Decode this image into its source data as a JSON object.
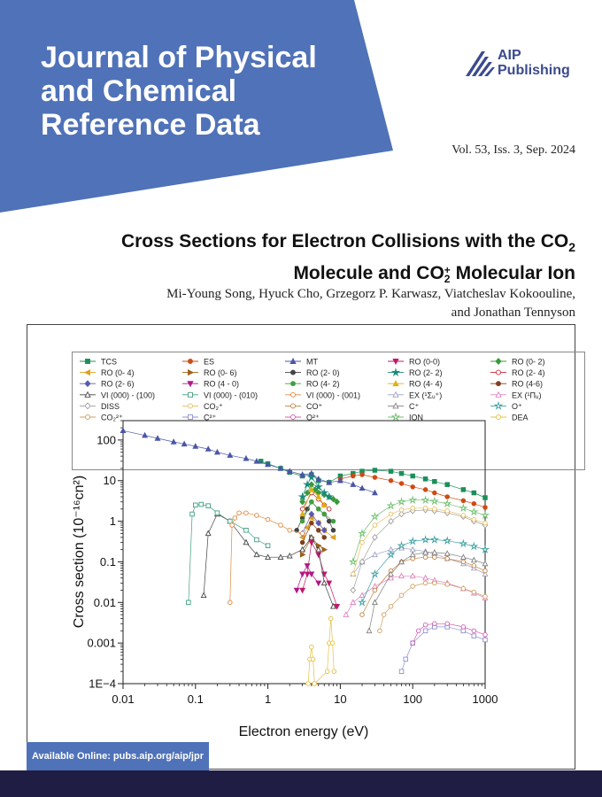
{
  "journal": {
    "title_lines": [
      "Journal of Physical",
      "and Chemical",
      "Reference Data"
    ],
    "publisher_lines": [
      "AIP",
      "Publishing"
    ],
    "issue": "Vol. 53, Iss. 3, Sep. 2024"
  },
  "article": {
    "title_line1": "Cross Sections for Electron Collisions with the CO",
    "title_line1_sub": "2",
    "title_line2_a": "Molecule and CO",
    "title_line2_sup": "+",
    "title_line2_sub": "2",
    "title_line2_b": " Molecular Ion",
    "authors_line1": "Mi-Young Song, Hyuck Cho, Grzegorz P. Karwasz, Viatcheslav Kokoouline,",
    "authors_line2": "and Jonathan Tennyson"
  },
  "availability": "Available Online: pubs.aip.org/aip/jpr",
  "colors": {
    "banner": "#4f72b8",
    "footer": "#1f1d44",
    "logo": "#3b4a8f"
  },
  "chart_data": {
    "type": "scatter",
    "log_x": true,
    "log_y": true,
    "xlim": [
      0.01,
      1000
    ],
    "ylim": [
      0.0001,
      300
    ],
    "xlabel": "Electron energy (eV)",
    "ylabel": "Cross section (10⁻¹⁶cn²)",
    "x_ticks": [
      "0.01",
      "0.1",
      "1",
      "10",
      "100",
      "1000"
    ],
    "y_ticks": [
      "1E−4",
      "0.001",
      "0.01",
      "0.1",
      "1",
      "10",
      "100"
    ],
    "legend_position": "top",
    "series": [
      {
        "name": "TCS",
        "color": "#1a8f5a",
        "marker": "square",
        "x": [
          0.8,
          1,
          1.5,
          2,
          3,
          4,
          5,
          7,
          10,
          15,
          20,
          30,
          50,
          70,
          100,
          150,
          200,
          300,
          500,
          700,
          1000
        ],
        "y": [
          30,
          26,
          20,
          16,
          13,
          14,
          10,
          9,
          13,
          15,
          17,
          18,
          17,
          15,
          13,
          11,
          9.5,
          8,
          6,
          5,
          3.8
        ]
      },
      {
        "name": "ES",
        "color": "#d04a12",
        "marker": "circle",
        "x": [
          10,
          15,
          20,
          30,
          50,
          70,
          100,
          150,
          200,
          300,
          500,
          700,
          1000
        ],
        "y": [
          11,
          13,
          14,
          12,
          10,
          8.5,
          7,
          6,
          5,
          4,
          3.2,
          2.7,
          2.2
        ]
      },
      {
        "name": "MT",
        "color": "#4a56a8",
        "marker": "triangle",
        "x": [
          0.01,
          0.02,
          0.03,
          0.05,
          0.07,
          0.1,
          0.15,
          0.2,
          0.3,
          0.5,
          0.7,
          1,
          1.5,
          2,
          3,
          4,
          5,
          7,
          10,
          15,
          20,
          30
        ],
        "y": [
          170,
          130,
          110,
          90,
          80,
          70,
          60,
          50,
          42,
          35,
          30,
          25,
          20,
          17,
          14,
          15,
          11,
          9,
          10,
          8,
          6.5,
          5
        ]
      },
      {
        "name": "RO (0-0)",
        "color": "#c0186c",
        "marker": "triangle-down",
        "x": [
          3,
          3.5,
          4,
          5,
          6,
          7,
          9
        ],
        "y": [
          0.02,
          0.05,
          0.3,
          0.15,
          0.05,
          0.03,
          0.008
        ]
      },
      {
        "name": "RO (0- 2)",
        "color": "#3a9a3a",
        "marker": "diamond",
        "x": [
          3,
          3.5,
          4,
          4.5,
          5,
          6,
          7,
          8,
          9
        ],
        "y": [
          3,
          5,
          8,
          6,
          5,
          4.5,
          4,
          3.5,
          3
        ]
      },
      {
        "name": "RO (0- 4)",
        "color": "#e0a020",
        "marker": "triangle-left",
        "x": [
          3,
          3.5,
          4,
          5,
          6,
          8
        ],
        "y": [
          0.4,
          0.7,
          1.2,
          0.9,
          0.6,
          0.4
        ]
      },
      {
        "name": "RO (0- 6)",
        "color": "#a0601a",
        "marker": "triangle-right",
        "x": [
          3,
          4,
          5,
          6
        ],
        "y": [
          0.15,
          0.4,
          0.25,
          0.2
        ]
      },
      {
        "name": "RO (2- 0)",
        "color": "#444444",
        "marker": "circle",
        "x": [
          2.5,
          3,
          3.5,
          4,
          5,
          6,
          7,
          8
        ],
        "y": [
          0.6,
          1.2,
          2,
          3,
          2,
          1.5,
          1,
          0.6
        ]
      },
      {
        "name": "RO (2- 2)",
        "color": "#1a8a7a",
        "marker": "star",
        "x": [
          3,
          3.5,
          4,
          5,
          6,
          7
        ],
        "y": [
          4,
          8,
          12,
          7,
          5,
          4
        ]
      },
      {
        "name": "RO (2- 4)",
        "color": "#c8283a",
        "marker": "circle-open",
        "x": [
          3,
          4,
          5,
          6,
          7
        ],
        "y": [
          2,
          5,
          3.5,
          2.5,
          2
        ]
      },
      {
        "name": "RO (2- 6)",
        "color": "#5a5ab0",
        "marker": "diamond",
        "x": [
          3,
          4,
          5,
          6
        ],
        "y": [
          0.5,
          1.5,
          0.9,
          0.6
        ]
      },
      {
        "name": "RO (4 - 0)",
        "color": "#b0188a",
        "marker": "triangle-down",
        "x": [
          2.5,
          3,
          3.5,
          4,
          5
        ],
        "y": [
          0.02,
          0.05,
          0.08,
          0.05,
          0.03
        ]
      },
      {
        "name": "RO (4- 2)",
        "color": "#40a040",
        "marker": "circle",
        "x": [
          3,
          4,
          5,
          6,
          8
        ],
        "y": [
          1,
          3,
          2,
          1.5,
          1
        ]
      },
      {
        "name": "RO (4- 4)",
        "color": "#e0b010",
        "marker": "triangle",
        "x": [
          3,
          4,
          5,
          6
        ],
        "y": [
          1.5,
          6,
          4,
          2.5
        ]
      },
      {
        "name": "RO (4-6)",
        "color": "#804020",
        "marker": "circle",
        "x": [
          3,
          4,
          5,
          6
        ],
        "y": [
          0.3,
          0.9,
          0.6,
          0.4
        ]
      },
      {
        "name": "VI (000) - (100)",
        "color": "#444444",
        "marker": "triangle-open",
        "x": [
          0.13,
          0.15,
          0.2,
          0.3,
          0.5,
          0.7,
          1,
          1.5,
          2,
          3,
          4,
          5,
          6,
          8
        ],
        "y": [
          0.015,
          0.5,
          1.5,
          1,
          0.3,
          0.15,
          0.13,
          0.13,
          0.14,
          0.2,
          0.4,
          0.2,
          0.03,
          0.008
        ]
      },
      {
        "name": "VI (000) - (010)",
        "color": "#40a080",
        "marker": "square-open",
        "x": [
          0.08,
          0.09,
          0.1,
          0.12,
          0.15,
          0.2,
          0.3,
          0.5,
          0.7,
          1
        ],
        "y": [
          0.01,
          1.5,
          2.5,
          2.6,
          2.4,
          1.6,
          1,
          0.6,
          0.35,
          0.25
        ]
      },
      {
        "name": "VI (000) - (001)",
        "color": "#e08a40",
        "marker": "circle-open",
        "x": [
          0.3,
          0.32,
          0.35,
          0.4,
          0.5,
          0.7,
          1,
          1.5,
          2,
          3
        ],
        "y": [
          0.01,
          0.8,
          1.2,
          1.6,
          1.6,
          1.4,
          1.1,
          0.8,
          0.6,
          0.5
        ]
      },
      {
        "name": "EX (¹Σᵤ⁺)",
        "color": "#a0a0c8",
        "marker": "triangle-open",
        "x": [
          15,
          20,
          30,
          50,
          70,
          100,
          150,
          200,
          300,
          500,
          700,
          1000
        ],
        "y": [
          0.05,
          0.1,
          0.15,
          0.2,
          0.22,
          0.2,
          0.18,
          0.16,
          0.12,
          0.09,
          0.07,
          0.05
        ]
      },
      {
        "name": "EX (¹Πᵤ)",
        "color": "#e080c0",
        "marker": "triangle-open",
        "x": [
          12,
          15,
          20,
          30,
          50,
          70,
          100,
          150,
          200,
          300,
          500,
          700,
          1000
        ],
        "y": [
          0.005,
          0.01,
          0.015,
          0.025,
          0.04,
          0.045,
          0.045,
          0.04,
          0.035,
          0.03,
          0.022,
          0.017,
          0.013
        ]
      },
      {
        "name": "DISS",
        "color": "#a0a0a0",
        "marker": "diamond-open",
        "x": [
          15,
          20,
          30,
          50,
          70,
          100,
          150,
          200,
          300,
          500,
          700,
          1000
        ],
        "y": [
          0.02,
          0.1,
          0.4,
          1,
          1.5,
          1.8,
          1.9,
          1.8,
          1.6,
          1.3,
          1,
          0.8
        ]
      },
      {
        "name": "CO₂⁺",
        "color": "#e8c060",
        "marker": "circle-open",
        "x": [
          15,
          20,
          30,
          50,
          70,
          100,
          150,
          200,
          300,
          500,
          700,
          1000
        ],
        "y": [
          0.05,
          0.3,
          0.8,
          1.5,
          1.9,
          2.1,
          2.1,
          2,
          1.8,
          1.4,
          1.1,
          0.9
        ]
      },
      {
        "name": "CO⁺",
        "color": "#c08040",
        "marker": "circle-open",
        "x": [
          20,
          30,
          50,
          70,
          100,
          150,
          200,
          300,
          500,
          700,
          1000
        ],
        "y": [
          0.005,
          0.02,
          0.06,
          0.1,
          0.12,
          0.13,
          0.13,
          0.12,
          0.1,
          0.08,
          0.06
        ]
      },
      {
        "name": "C⁺",
        "color": "#808080",
        "marker": "triangle-open",
        "x": [
          25,
          30,
          50,
          70,
          100,
          150,
          200,
          300,
          500,
          700,
          1000
        ],
        "y": [
          0.002,
          0.01,
          0.05,
          0.1,
          0.15,
          0.17,
          0.17,
          0.16,
          0.13,
          0.11,
          0.09
        ]
      },
      {
        "name": "O⁺",
        "color": "#40a0a0",
        "marker": "star-open",
        "x": [
          20,
          30,
          50,
          70,
          100,
          150,
          200,
          300,
          500,
          700,
          1000
        ],
        "y": [
          0.01,
          0.05,
          0.15,
          0.25,
          0.32,
          0.35,
          0.35,
          0.33,
          0.28,
          0.24,
          0.2
        ]
      },
      {
        "name": "CO₂²⁺",
        "color": "#d0a060",
        "marker": "circle-open",
        "x": [
          35,
          40,
          50,
          70,
          100,
          150,
          200,
          300,
          500,
          700,
          1000
        ],
        "y": [
          0.002,
          0.005,
          0.008,
          0.015,
          0.025,
          0.03,
          0.03,
          0.028,
          0.022,
          0.018,
          0.014
        ]
      },
      {
        "name": "C²⁺",
        "color": "#9090d0",
        "marker": "square-open",
        "x": [
          70,
          80,
          100,
          150,
          200,
          300,
          500,
          700,
          1000
        ],
        "y": [
          0.0002,
          0.0004,
          0.001,
          0.002,
          0.0025,
          0.0025,
          0.002,
          0.0015,
          0.0012
        ]
      },
      {
        "name": "O²⁺",
        "color": "#d060b0",
        "marker": "circle-open",
        "x": [
          100,
          120,
          150,
          200,
          300,
          500,
          700,
          1000
        ],
        "y": [
          0.001,
          0.002,
          0.0028,
          0.003,
          0.003,
          0.0025,
          0.002,
          0.0016
        ]
      },
      {
        "name": "ION",
        "color": "#70c070",
        "marker": "star-open",
        "x": [
          15,
          20,
          30,
          50,
          70,
          100,
          150,
          200,
          300,
          500,
          700,
          1000
        ],
        "y": [
          0.1,
          0.5,
          1.3,
          2.4,
          3,
          3.3,
          3.3,
          3.1,
          2.7,
          2.1,
          1.7,
          1.4
        ]
      },
      {
        "name": "DEA",
        "color": "#e8c040",
        "marker": "circle-open",
        "x": [
          3.6,
          3.8,
          4.0,
          4.2,
          4.4,
          6.6,
          7.0,
          7.4,
          7.8,
          8.2
        ],
        "y": [
          0.0001,
          0.0004,
          0.0008,
          0.0004,
          0.0001,
          0.0002,
          0.001,
          0.004,
          0.001,
          0.0002
        ]
      }
    ]
  }
}
